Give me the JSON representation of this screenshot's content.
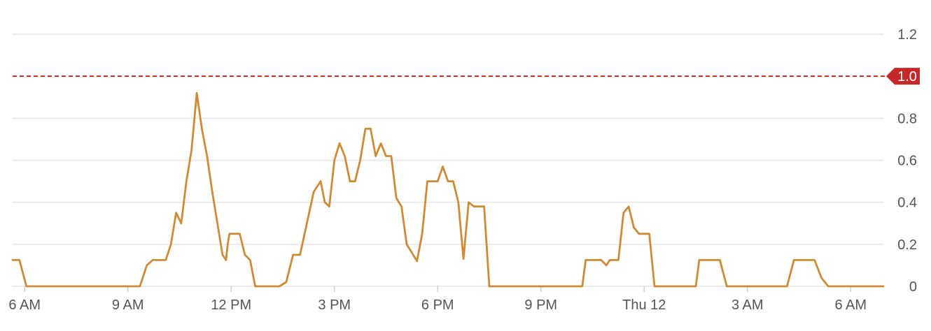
{
  "chart_data": {
    "type": "line",
    "title": "",
    "xlabel": "",
    "ylabel": "",
    "ylim": [
      0,
      1.2
    ],
    "y_ticks": [
      "0",
      "0.2",
      "0.4",
      "0.6",
      "0.8",
      "1.2"
    ],
    "x_ticks": [
      "6 AM",
      "9 AM",
      "12 PM",
      "3 PM",
      "6 PM",
      "9 PM",
      "Thu 12",
      "3 AM",
      "6 AM"
    ],
    "x_tick_hours": [
      6,
      9,
      12,
      15,
      18,
      21,
      24,
      27,
      30
    ],
    "x_range_hours": [
      5.65,
      30.95
    ],
    "x_unit": "hours from midnight of the first day",
    "grid": true,
    "threshold": {
      "value": 1.0,
      "label": "1.0",
      "color": "#c62828"
    },
    "series": [
      {
        "name": "",
        "color": "#d08a34",
        "x": [
          5.65,
          5.85,
          6.05,
          9.35,
          9.55,
          9.72,
          10.1,
          10.25,
          10.4,
          10.55,
          10.7,
          10.85,
          11.0,
          11.15,
          11.3,
          11.45,
          11.6,
          11.75,
          11.85,
          11.9,
          11.95,
          12.0,
          12.1,
          12.25,
          12.4,
          12.55,
          12.7,
          12.85,
          13.0,
          13.2,
          13.4,
          13.6,
          13.8,
          14.0,
          14.2,
          14.4,
          14.6,
          14.72,
          14.85,
          15.0,
          15.15,
          15.3,
          15.45,
          15.6,
          15.75,
          15.9,
          16.05,
          16.2,
          16.35,
          16.5,
          16.65,
          16.8,
          16.95,
          17.1,
          17.25,
          17.4,
          17.55,
          17.7,
          17.85,
          18.0,
          18.15,
          18.3,
          18.45,
          18.6,
          18.75,
          18.9,
          19.05,
          19.2,
          19.35,
          19.5,
          19.65,
          19.8,
          19.95,
          20.1,
          20.25,
          20.4,
          20.55,
          20.7,
          20.85,
          21.0,
          21.15,
          21.3,
          21.45,
          21.6,
          21.75,
          21.9,
          22.05,
          22.2,
          22.3,
          22.5,
          22.75,
          22.9,
          23.0,
          23.12,
          23.25,
          23.4,
          23.55,
          23.7,
          23.85,
          24.0,
          24.15,
          24.3,
          24.45,
          24.6,
          24.75,
          24.9,
          25.05,
          25.2,
          25.35,
          25.5,
          25.6,
          25.75,
          25.95,
          26.2,
          26.4,
          26.6,
          26.8,
          27.0,
          27.2,
          27.4,
          27.6,
          27.8,
          27.95,
          28.15,
          28.35,
          28.55,
          28.75,
          28.95,
          29.15,
          29.35,
          29.55,
          29.75,
          29.95,
          30.15,
          30.35,
          30.55,
          30.75,
          30.95
        ],
        "y": [
          0.125,
          0.125,
          0.0,
          0.0,
          0.1,
          0.125,
          0.125,
          0.2,
          0.35,
          0.3,
          0.5,
          0.65,
          0.92,
          0.75,
          0.62,
          0.45,
          0.3,
          0.15,
          0.125,
          0.2,
          0.25,
          0.25,
          0.25,
          0.25,
          0.15,
          0.125,
          0.0,
          0.0,
          0.0,
          0.0,
          0.0,
          0.02,
          0.15,
          0.15,
          0.3,
          0.45,
          0.5,
          0.4,
          0.38,
          0.6,
          0.68,
          0.62,
          0.5,
          0.5,
          0.6,
          0.75,
          0.75,
          0.62,
          0.68,
          0.62,
          0.62,
          0.42,
          0.38,
          0.2,
          0.16,
          0.12,
          0.25,
          0.5,
          0.5,
          0.5,
          0.57,
          0.5,
          0.5,
          0.4,
          0.13,
          0.4,
          0.38,
          0.38,
          0.38,
          0.0,
          0.0,
          0.0,
          0.0,
          0.0,
          0.0,
          0.0,
          0.0,
          0.0,
          0.0,
          0.0,
          0.0,
          0.0,
          0.0,
          0.0,
          0.0,
          0.0,
          0.0,
          0.0,
          0.125,
          0.125,
          0.125,
          0.1,
          0.125,
          0.125,
          0.125,
          0.35,
          0.38,
          0.28,
          0.25,
          0.25,
          0.25,
          0.0,
          0.0,
          0.0,
          0.0,
          0.0,
          0.0,
          0.0,
          0.0,
          0.0,
          0.125,
          0.125,
          0.125,
          0.125,
          0.0,
          0.0,
          0.0,
          0.0,
          0.0,
          0.0,
          0.0,
          0.0,
          0.0,
          0.0,
          0.125,
          0.125,
          0.125,
          0.125,
          0.04,
          0.0,
          0.0,
          0.0,
          0.0,
          0.0,
          0.0,
          0.0,
          0.0,
          0.0
        ]
      }
    ]
  }
}
